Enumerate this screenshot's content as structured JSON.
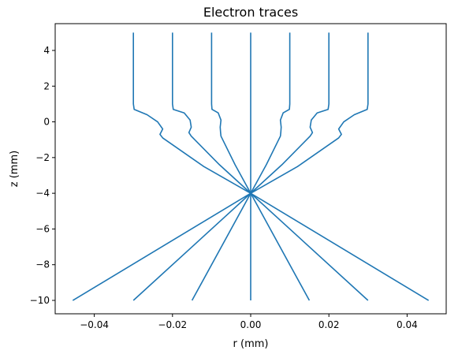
{
  "chart_data": {
    "type": "line",
    "title": "Electron traces",
    "xlabel": "r (mm)",
    "ylabel": "z (mm)",
    "xlim": [
      -0.05,
      0.05
    ],
    "ylim": [
      -10.75,
      5.5
    ],
    "xticks": [
      {
        "value": -0.04,
        "label": "−0.04"
      },
      {
        "value": -0.02,
        "label": "−0.02"
      },
      {
        "value": 0.0,
        "label": "0.00"
      },
      {
        "value": 0.02,
        "label": "0.02"
      },
      {
        "value": 0.04,
        "label": "0.04"
      }
    ],
    "yticks": [
      {
        "value": 4,
        "label": "4"
      },
      {
        "value": 2,
        "label": "2"
      },
      {
        "value": 0,
        "label": "0"
      },
      {
        "value": -2,
        "label": "−2"
      },
      {
        "value": -4,
        "label": "−4"
      },
      {
        "value": -6,
        "label": "−6"
      },
      {
        "value": -8,
        "label": "−8"
      },
      {
        "value": -10,
        "label": "−10"
      }
    ],
    "grid": false,
    "color": "#1f77b4",
    "series": [
      {
        "x": [
          -0.03,
          -0.03,
          -0.0298,
          -0.0265,
          -0.0238,
          -0.0225,
          -0.0232,
          -0.0225,
          -0.012,
          0.0,
          0.0455
        ],
        "y": [
          5,
          1.0,
          0.7,
          0.4,
          0.0,
          -0.4,
          -0.7,
          -0.9,
          -2.5,
          -4.0,
          -10.0
        ]
      },
      {
        "x": [
          -0.02,
          -0.02,
          -0.0198,
          -0.017,
          -0.0155,
          -0.0152,
          -0.0158,
          -0.0152,
          -0.008,
          0.0,
          0.03
        ],
        "y": [
          5,
          1.0,
          0.7,
          0.5,
          0.1,
          -0.3,
          -0.6,
          -0.8,
          -2.4,
          -4.0,
          -10.0
        ]
      },
      {
        "x": [
          -0.01,
          -0.01,
          -0.0099,
          -0.0083,
          -0.0076,
          -0.0078,
          -0.0077,
          -0.0076,
          -0.004,
          0.0,
          0.015
        ],
        "y": [
          5,
          1.0,
          0.7,
          0.5,
          0.1,
          -0.3,
          -0.6,
          -0.8,
          -2.4,
          -4.0,
          -10.0
        ]
      },
      {
        "x": [
          0.0,
          0.0
        ],
        "y": [
          5,
          -10.0
        ]
      },
      {
        "x": [
          0.01,
          0.01,
          0.0099,
          0.0083,
          0.0076,
          0.0078,
          0.0077,
          0.0076,
          0.004,
          0.0,
          -0.015
        ],
        "y": [
          5,
          1.0,
          0.7,
          0.5,
          0.1,
          -0.3,
          -0.6,
          -0.8,
          -2.4,
          -4.0,
          -10.0
        ]
      },
      {
        "x": [
          0.02,
          0.02,
          0.0198,
          0.017,
          0.0155,
          0.0152,
          0.0158,
          0.0152,
          0.008,
          0.0,
          -0.03
        ],
        "y": [
          5,
          1.0,
          0.7,
          0.5,
          0.1,
          -0.3,
          -0.6,
          -0.8,
          -2.4,
          -4.0,
          -10.0
        ]
      },
      {
        "x": [
          0.03,
          0.03,
          0.0298,
          0.0265,
          0.0238,
          0.0225,
          0.0232,
          0.0225,
          0.012,
          0.0,
          -0.0455
        ],
        "y": [
          5,
          1.0,
          0.7,
          0.4,
          0.0,
          -0.4,
          -0.7,
          -0.9,
          -2.5,
          -4.0,
          -10.0
        ]
      }
    ]
  }
}
